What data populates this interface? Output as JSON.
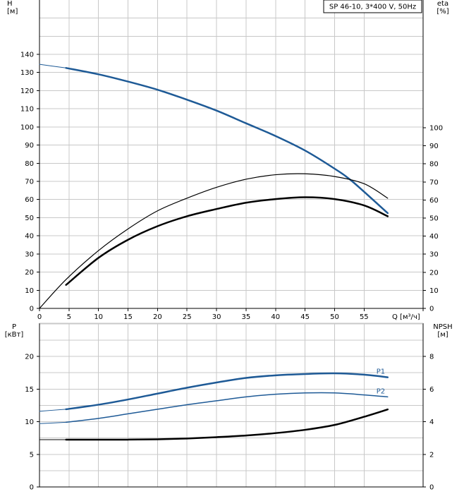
{
  "chart_data": [
    {
      "type": "line",
      "title": "SP 46-10, 3*400 V, 50Hz",
      "xlabel": "Q [м³/ч]",
      "ylabel_left": "H\n[м]",
      "ylabel_right": "eta\n[%]",
      "xlim": [
        0,
        65
      ],
      "ylim_left": [
        0,
        170
      ],
      "ylim_right": [
        0,
        170
      ],
      "x_ticks": [
        0,
        5,
        10,
        15,
        20,
        25,
        30,
        35,
        40,
        45,
        50,
        55
      ],
      "y_ticks_left": [
        0,
        10,
        20,
        30,
        40,
        50,
        60,
        70,
        80,
        90,
        100,
        110,
        120,
        130,
        140
      ],
      "y_ticks_right": [
        0,
        10,
        20,
        30,
        40,
        50,
        60,
        70,
        80,
        90,
        100
      ],
      "grid": true,
      "series": [
        {
          "axis": "left",
          "color": "#1e5a96",
          "width": 2.5,
          "style": "head",
          "x": [
            0,
            4.5,
            10,
            15,
            20,
            25,
            30,
            35,
            40,
            45,
            50,
            53,
            59
          ],
          "y": [
            134.5,
            132.5,
            129,
            125,
            120.5,
            115,
            109,
            102,
            95,
            87,
            77,
            70,
            52.5
          ]
        },
        {
          "axis": "right",
          "color": "#000000",
          "width": 1.2,
          "style": "eta-thin",
          "x": [
            0,
            4.5,
            10,
            15,
            20,
            25,
            30,
            35,
            40,
            45,
            50,
            55,
            59
          ],
          "y": [
            0,
            16,
            32,
            44,
            54,
            61,
            67,
            71.5,
            74,
            74.5,
            73,
            69,
            61
          ]
        },
        {
          "axis": "right",
          "color": "#000000",
          "width": 2.5,
          "style": "eta-bold",
          "x": [
            4.5,
            10,
            15,
            20,
            25,
            30,
            35,
            40,
            45,
            50,
            55,
            59
          ],
          "y": [
            13,
            28,
            38,
            45.5,
            51,
            55,
            58.5,
            60.5,
            61.5,
            60.5,
            57,
            51
          ]
        }
      ]
    },
    {
      "type": "line",
      "ylabel_left": "P\n[кВт]",
      "ylabel_right": "NPSH\n[м]",
      "xlim": [
        0,
        65
      ],
      "ylim_left": [
        0,
        25
      ],
      "ylim_right": [
        0,
        10
      ],
      "y_ticks_left": [
        0,
        5,
        10,
        15,
        20
      ],
      "y_ticks_right": [
        0,
        2,
        4,
        6,
        8
      ],
      "grid": true,
      "series": [
        {
          "name": "P1",
          "axis": "left",
          "color": "#1e5a96",
          "width": 2.5,
          "x": [
            0,
            4.5,
            10,
            15,
            20,
            25,
            30,
            35,
            40,
            45,
            50,
            55,
            59
          ],
          "y": [
            11.6,
            11.9,
            12.6,
            13.4,
            14.3,
            15.2,
            16.0,
            16.7,
            17.1,
            17.3,
            17.4,
            17.2,
            16.8
          ]
        },
        {
          "name": "P2",
          "axis": "left",
          "color": "#1e5a96",
          "width": 1.5,
          "x": [
            0,
            4.5,
            10,
            15,
            20,
            25,
            30,
            35,
            40,
            45,
            50,
            55,
            59
          ],
          "y": [
            9.7,
            9.9,
            10.5,
            11.2,
            11.9,
            12.6,
            13.2,
            13.8,
            14.2,
            14.4,
            14.4,
            14.1,
            13.8
          ]
        },
        {
          "axis": "right",
          "color": "#000000",
          "width": 2.5,
          "x": [
            0,
            4.5,
            10,
            15,
            20,
            25,
            30,
            35,
            40,
            45,
            50,
            55,
            59
          ],
          "y": [
            2.9,
            2.9,
            2.9,
            2.9,
            2.92,
            2.97,
            3.05,
            3.15,
            3.3,
            3.5,
            3.8,
            4.3,
            4.75
          ]
        }
      ]
    }
  ]
}
